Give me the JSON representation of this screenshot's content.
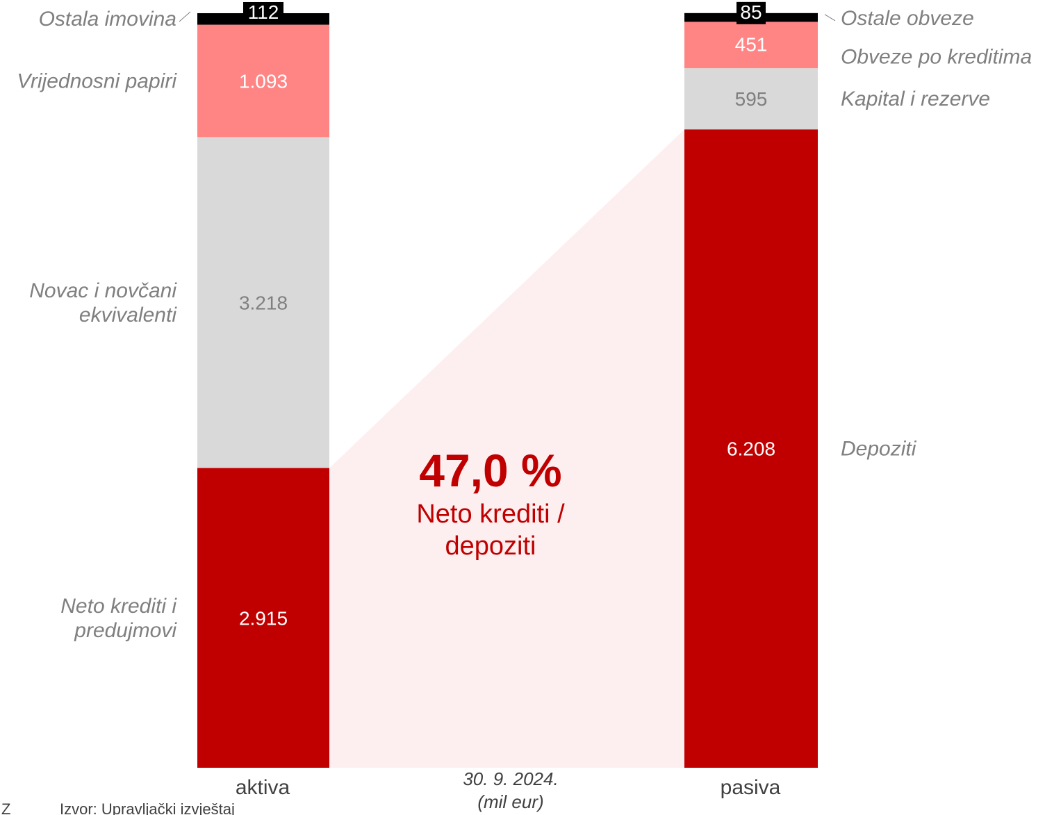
{
  "colors": {
    "loans": "#c00000",
    "cash": "#d9d9d9",
    "securities": "#ff8585",
    "other": "#000000",
    "ratio_fill": "#fdeff0",
    "text_gray": "#7f7f7f",
    "text_dark": "#404040"
  },
  "chart_data": {
    "type": "bar",
    "stacked": true,
    "unit_label": "(mil eur)",
    "date_label": "30. 9. 2024.",
    "categories": [
      "aktiva",
      "pasiva"
    ],
    "stacks": [
      {
        "category": "aktiva",
        "segments": [
          {
            "name": "Neto krediti i predujmovi",
            "name_lines": [
              "Neto krediti i",
              "predujmovi"
            ],
            "value": 2915,
            "display": "2.915",
            "color": "#c00000",
            "text_color": "#ffffff"
          },
          {
            "name": "Novac i novčani ekvivalenti",
            "name_lines": [
              "Novac i novčani",
              "ekvivalenti"
            ],
            "value": 3218,
            "display": "3.218",
            "color": "#d9d9d9",
            "text_color": "#7f7f7f"
          },
          {
            "name": "Vrijednosni papiri",
            "name_lines": [
              "Vrijednosni papiri"
            ],
            "value": 1093,
            "display": "1.093",
            "color": "#ff8585",
            "text_color": "#ffffff"
          },
          {
            "name": "Ostala imovina",
            "name_lines": [
              "Ostala imovina"
            ],
            "value": 112,
            "display": "112",
            "color": "#000000",
            "text_color": "#ffffff",
            "boxed": true
          }
        ]
      },
      {
        "category": "pasiva",
        "segments": [
          {
            "name": "Depoziti",
            "name_lines": [
              "Depoziti"
            ],
            "value": 6208,
            "display": "6.208",
            "color": "#c00000",
            "text_color": "#ffffff"
          },
          {
            "name": "Kapital i rezerve",
            "name_lines": [
              "Kapital i rezerve"
            ],
            "value": 595,
            "display": "595",
            "color": "#d9d9d9",
            "text_color": "#7f7f7f"
          },
          {
            "name": "Obveze po kreditima",
            "name_lines": [
              "Obveze po kreditima"
            ],
            "value": 451,
            "display": "451",
            "color": "#ff8585",
            "text_color": "#ffffff"
          },
          {
            "name": "Ostale obveze",
            "name_lines": [
              "Ostale obveze"
            ],
            "value": 85,
            "display": "85",
            "color": "#000000",
            "text_color": "#ffffff",
            "boxed": true
          }
        ]
      }
    ],
    "ratio": {
      "value": "47,0 %",
      "label_lines": [
        "Neto krediti /",
        "depoziti"
      ]
    }
  },
  "source": {
    "prefix": "Z",
    "text": "Izvor: Upravljački izvještaj"
  }
}
